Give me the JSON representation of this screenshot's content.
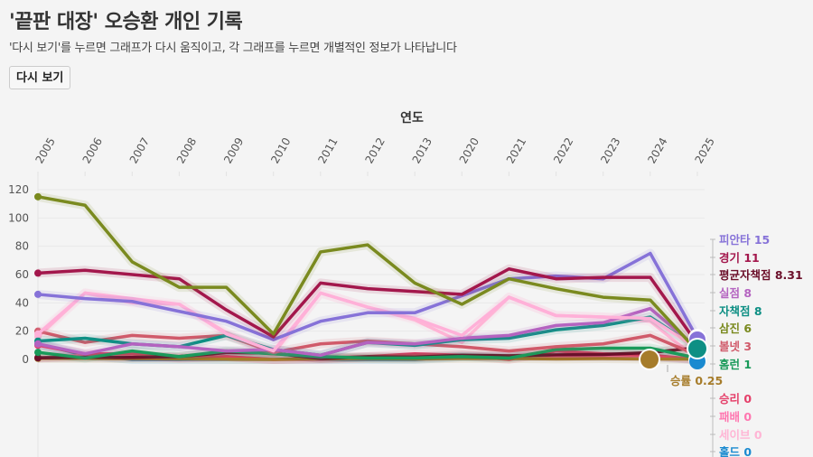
{
  "header": {
    "title": "'끝판 대장' 오승환 개인 기록",
    "subtitle": "'다시 보기'를 누르면 그래프가 다시 움직이고, 각 그래프를 누르면 개별적인 정보가 나타납니다",
    "replay_label": "다시 보기"
  },
  "chart_data": {
    "type": "line",
    "xlabel": "연도",
    "ylabel": "",
    "x": [
      "2005",
      "2006",
      "2007",
      "2008",
      "2009",
      "2010",
      "2011",
      "2012",
      "2013",
      "2020",
      "2021",
      "2022",
      "2023",
      "2024",
      "2025"
    ],
    "yticks": [
      "0",
      "20",
      "40",
      "60",
      "80",
      "100",
      "120"
    ],
    "ylim": [
      0,
      120
    ],
    "grid": true,
    "legend_placement": "right",
    "series": [
      {
        "name": "삼진",
        "label": "삼진 6",
        "color": "#7a8a1f",
        "values": [
          115,
          109,
          69,
          51,
          51,
          18,
          76,
          81,
          54,
          39,
          57,
          50,
          44,
          42,
          6
        ]
      },
      {
        "name": "경기",
        "label": "경기 11",
        "color": "#a3174c",
        "values": [
          61,
          63,
          60,
          57,
          35,
          16,
          54,
          50,
          48,
          46,
          64,
          57,
          58,
          58,
          11
        ]
      },
      {
        "name": "피안타",
        "label": "피안타 15",
        "color": "#8672d8",
        "values": [
          46,
          43,
          41,
          34,
          27,
          14,
          27,
          33,
          33,
          45,
          57,
          59,
          57,
          75,
          15
        ]
      },
      {
        "name": "",
        "label": "",
        "color": "#ffb0d8",
        "values": [
          18,
          47,
          43,
          39,
          18,
          6,
          47,
          37,
          29,
          17,
          44,
          31,
          30,
          29,
          8
        ]
      },
      {
        "name": "실점",
        "label": "실점 8",
        "color": "#b463c0",
        "values": [
          11,
          4,
          11,
          9,
          6,
          7,
          3,
          12,
          11,
          15,
          17,
          24,
          26,
          36,
          8
        ]
      },
      {
        "name": "자책점",
        "label": "자책점 8",
        "color": "#0e8f84",
        "values": [
          13,
          15,
          11,
          9,
          17,
          7,
          3,
          12,
          10,
          14,
          15,
          21,
          24,
          30,
          8
        ]
      },
      {
        "name": "볼넷",
        "label": "볼넷 3",
        "color": "#d05a6a",
        "values": [
          20,
          12,
          17,
          15,
          17,
          5,
          11,
          13,
          11,
          9,
          6,
          9,
          11,
          17,
          3
        ]
      },
      {
        "name": "홈런",
        "label": "홈런 1",
        "color": "#1a9a5a",
        "values": [
          5,
          1,
          6,
          2,
          6,
          4,
          2,
          1,
          1,
          2,
          1,
          7,
          8,
          8,
          1
        ]
      },
      {
        "name": "평균자책점",
        "label": "평균자책점 8.31",
        "color": "#6b0f2a",
        "values": [
          1.2,
          1.6,
          1.4,
          2.1,
          4.8,
          4.5,
          0.6,
          1.9,
          1.7,
          3.0,
          2.6,
          3.3,
          3.5,
          4.9,
          8.31
        ]
      },
      {
        "name": "승률",
        "label": "승률 0.25",
        "color": "#a67c2a",
        "values": [
          0.8,
          0.8,
          0.6,
          0.5,
          0.2,
          0.0,
          0.5,
          0.6,
          0.4,
          0.7,
          0.7,
          0.4,
          0.6,
          0.3,
          0.25
        ]
      },
      {
        "name": "승리",
        "label": "승리 0",
        "color": "#e5406a",
        "values": [
          10,
          4,
          4,
          1,
          2,
          0,
          1,
          2,
          4,
          3,
          0,
          6,
          4,
          3,
          0
        ]
      },
      {
        "name": "패배",
        "label": "패배 0",
        "color": "#ff77b0",
        "values": [
          1,
          3,
          2,
          1,
          2,
          0,
          0,
          1,
          1,
          2,
          2,
          2,
          2,
          2,
          0
        ]
      },
      {
        "name": "세이브",
        "label": "세이브 0",
        "color": "#ffb5d5",
        "values": [
          16,
          47,
          40,
          39,
          19,
          4,
          47,
          37,
          28,
          12,
          44,
          31,
          30,
          27,
          0
        ]
      },
      {
        "name": "홀드",
        "label": "홀드 0",
        "color": "#1a8ad0",
        "values": [
          11,
          3,
          0,
          0,
          0,
          0,
          0,
          0,
          0,
          2,
          2,
          2,
          2,
          2,
          0
        ]
      }
    ],
    "legend_order": [
      "피안타 15",
      "경기 11",
      "평균자책점 8.31",
      "실점 8",
      "자책점 8",
      "삼진 6",
      "볼넷 3",
      "홈런 1",
      "승리 0",
      "패배 0",
      "세이브 0",
      "홀드 0"
    ],
    "callout": "승률 0.25"
  }
}
